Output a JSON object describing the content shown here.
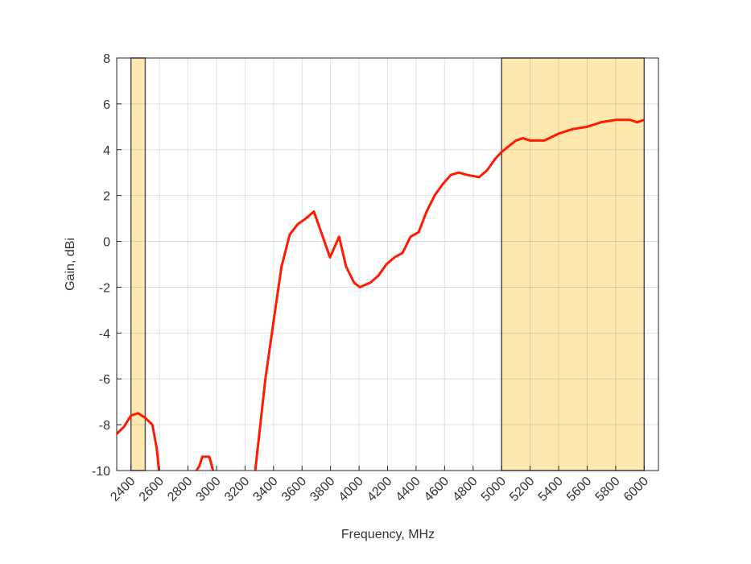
{
  "chart_data": {
    "type": "line",
    "x_label": "Frequency, MHz",
    "y_label": "Gain, dBi",
    "x": [
      2300,
      2350,
      2400,
      2450,
      2500,
      2550,
      2580,
      2600,
      null,
      2850,
      2880,
      2900,
      2950,
      2980,
      null,
      3270,
      3343,
      3400,
      3456,
      3514,
      3570,
      3627,
      3683,
      3740,
      3796,
      3860,
      3909,
      3965,
      4005,
      4079,
      4135,
      4192,
      4248,
      4305,
      4361,
      4418,
      4474,
      4530,
      4587,
      4644,
      4700,
      4757,
      4842,
      4898,
      4955,
      5000,
      5100,
      5150,
      5200,
      5300,
      5400,
      5500,
      5600,
      5700,
      5800,
      5900,
      5950,
      6000
    ],
    "series": [
      {
        "name": "Gain",
        "color": "#ff1a00",
        "values": [
          -8.4,
          -8.1,
          -7.6,
          -7.5,
          -7.7,
          -8.0,
          -9.0,
          -10.2,
          null,
          -10.1,
          -9.8,
          -9.4,
          -9.4,
          -10.1,
          null,
          -10.1,
          -6.0,
          -3.5,
          -1.1,
          0.3,
          0.75,
          1.0,
          1.3,
          0.3,
          -0.7,
          0.2,
          -1.1,
          -1.8,
          -2.0,
          -1.8,
          -1.5,
          -1.0,
          -0.7,
          -0.5,
          0.2,
          0.4,
          1.3,
          2.0,
          2.5,
          2.9,
          3.0,
          2.9,
          2.8,
          3.1,
          3.6,
          3.9,
          4.4,
          4.5,
          4.4,
          4.4,
          4.7,
          4.9,
          5.0,
          5.2,
          5.3,
          5.3,
          5.2,
          5.3
        ]
      }
    ],
    "bands": [
      [
        2400,
        2500
      ],
      [
        5000,
        6000
      ]
    ],
    "band_color": "#fde9b0",
    "xlim": [
      2300,
      6100
    ],
    "xticks": [
      2400,
      2600,
      2800,
      3000,
      3200,
      3400,
      3600,
      3800,
      4000,
      4200,
      4400,
      4600,
      4800,
      5000,
      5200,
      5400,
      5600,
      5800,
      6000
    ],
    "ylim": [
      -10,
      8
    ],
    "yticks": [
      -10,
      -8,
      -6,
      -4,
      -2,
      0,
      2,
      4,
      6,
      8
    ],
    "grid": true
  }
}
